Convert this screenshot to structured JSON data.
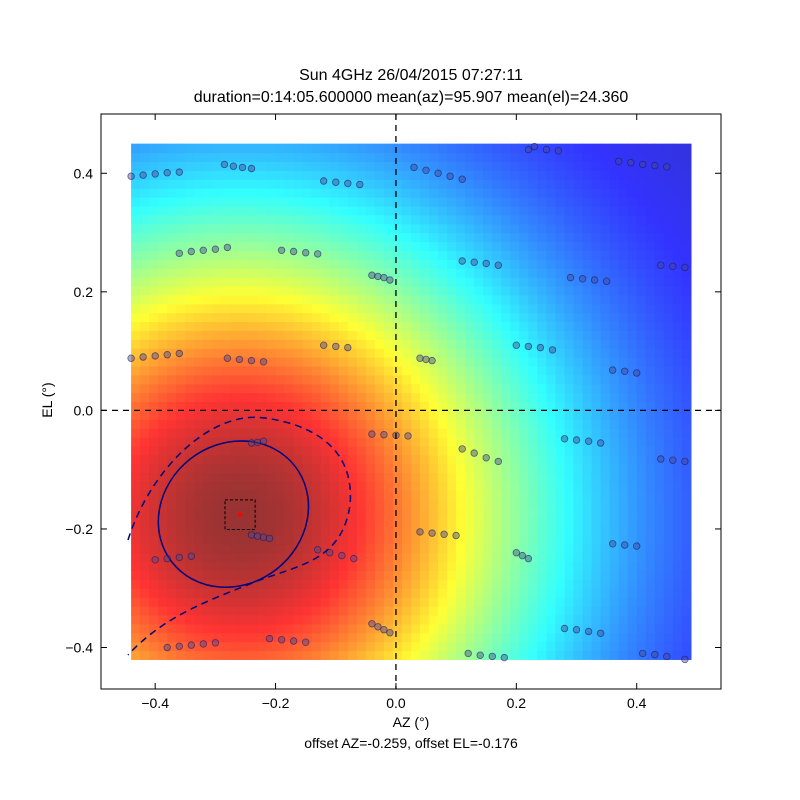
{
  "chart_data": {
    "type": "heatmap",
    "title": "Sun 4GHz 26/04/2015 07:27:11",
    "subtitle": "duration=0:14:05.600000 mean(az)=95.907 mean(el)=24.360",
    "xlabel": "AZ (°)",
    "ylabel": "EL (°)",
    "footer": "offset AZ=-0.259, offset EL=-0.176",
    "xlim": [
      -0.49,
      0.54
    ],
    "ylim": [
      -0.47,
      0.5
    ],
    "x_ticks": [
      -0.4,
      -0.2,
      0.0,
      0.2,
      0.4
    ],
    "x_tick_labels": [
      "−0.4",
      "−0.2",
      "0.0",
      "0.2",
      "0.4"
    ],
    "y_ticks": [
      -0.4,
      -0.2,
      0.0,
      0.2,
      0.4
    ],
    "y_tick_labels": [
      "−0.4",
      "−0.2",
      "0.0",
      "0.2",
      "0.4"
    ],
    "heatmap": {
      "colormap": "jet",
      "alpha": 0.8,
      "x_range": [
        -0.44,
        0.49
      ],
      "y_range": [
        -0.42,
        0.45
      ],
      "peak": {
        "x": -0.259,
        "y": -0.176
      }
    },
    "crosshair": {
      "x": 0.0,
      "y": 0.0
    },
    "offset_marker": {
      "x": -0.259,
      "y": -0.176,
      "box_half_width": 0.025,
      "color": "#ff0000"
    },
    "contours": [
      {
        "level": "solid",
        "color": "#000080"
      },
      {
        "level": "dashed",
        "color": "#000080"
      }
    ],
    "sample_points": {
      "color": "#1a1a80",
      "rows": [
        {
          "x": [
            -0.44,
            -0.42,
            -0.4,
            -0.38,
            -0.36
          ],
          "y": [
            0.395,
            0.397,
            0.399,
            0.401,
            0.402
          ]
        },
        {
          "x": [
            -0.285,
            -0.27,
            -0.255,
            -0.24
          ],
          "y": [
            0.415,
            0.412,
            0.41,
            0.408
          ]
        },
        {
          "x": [
            -0.12,
            -0.1,
            -0.08,
            -0.06
          ],
          "y": [
            0.387,
            0.385,
            0.383,
            0.381
          ]
        },
        {
          "x": [
            0.03,
            0.05,
            0.07,
            0.09,
            0.11
          ],
          "y": [
            0.41,
            0.405,
            0.4,
            0.395,
            0.39
          ]
        },
        {
          "x": [
            0.22,
            0.23,
            0.25,
            0.27
          ],
          "y": [
            0.44,
            0.445,
            0.44,
            0.438
          ]
        },
        {
          "x": [
            0.37,
            0.39,
            0.41,
            0.43,
            0.45
          ],
          "y": [
            0.42,
            0.418,
            0.415,
            0.413,
            0.411
          ]
        },
        {
          "x": [
            -0.36,
            -0.34,
            -0.32,
            -0.3,
            -0.28
          ],
          "y": [
            0.265,
            0.268,
            0.27,
            0.272,
            0.275
          ]
        },
        {
          "x": [
            -0.19,
            -0.17,
            -0.15,
            -0.13
          ],
          "y": [
            0.27,
            0.268,
            0.266,
            0.264
          ]
        },
        {
          "x": [
            -0.04,
            -0.03,
            -0.02,
            -0.01
          ],
          "y": [
            0.228,
            0.226,
            0.224,
            0.22
          ]
        },
        {
          "x": [
            0.11,
            0.13,
            0.15,
            0.17
          ],
          "y": [
            0.252,
            0.25,
            0.248,
            0.245
          ]
        },
        {
          "x": [
            0.29,
            0.31,
            0.33,
            0.35
          ],
          "y": [
            0.224,
            0.222,
            0.22,
            0.218
          ]
        },
        {
          "x": [
            0.44,
            0.46,
            0.48
          ],
          "y": [
            0.245,
            0.243,
            0.241
          ]
        },
        {
          "x": [
            -0.44,
            -0.42,
            -0.4,
            -0.38,
            -0.36
          ],
          "y": [
            0.088,
            0.09,
            0.092,
            0.094,
            0.096
          ]
        },
        {
          "x": [
            -0.28,
            -0.26,
            -0.24,
            -0.22
          ],
          "y": [
            0.088,
            0.086,
            0.084,
            0.082
          ]
        },
        {
          "x": [
            -0.12,
            -0.1,
            -0.08
          ],
          "y": [
            0.11,
            0.108,
            0.106
          ]
        },
        {
          "x": [
            0.04,
            0.05,
            0.06
          ],
          "y": [
            0.088,
            0.086,
            0.084
          ]
        },
        {
          "x": [
            0.2,
            0.22,
            0.24,
            0.26
          ],
          "y": [
            0.11,
            0.108,
            0.106,
            0.102
          ]
        },
        {
          "x": [
            0.36,
            0.38,
            0.4
          ],
          "y": [
            0.068,
            0.066,
            0.063
          ]
        },
        {
          "x": [
            -0.24,
            -0.23,
            -0.22
          ],
          "y": [
            -0.055,
            -0.054,
            -0.052
          ]
        },
        {
          "x": [
            -0.04,
            -0.02,
            0.0,
            0.02
          ],
          "y": [
            -0.04,
            -0.041,
            -0.042,
            -0.043
          ]
        },
        {
          "x": [
            0.11,
            0.13,
            0.15,
            0.17
          ],
          "y": [
            -0.065,
            -0.072,
            -0.08,
            -0.086
          ]
        },
        {
          "x": [
            0.28,
            0.3,
            0.32,
            0.34
          ],
          "y": [
            -0.048,
            -0.05,
            -0.052,
            -0.055
          ]
        },
        {
          "x": [
            0.44,
            0.46,
            0.48
          ],
          "y": [
            -0.082,
            -0.084,
            -0.086
          ]
        },
        {
          "x": [
            -0.4,
            -0.38,
            -0.36,
            -0.34
          ],
          "y": [
            -0.252,
            -0.25,
            -0.248,
            -0.246
          ]
        },
        {
          "x": [
            -0.24,
            -0.23,
            -0.22,
            -0.21
          ],
          "y": [
            -0.21,
            -0.212,
            -0.214,
            -0.216
          ]
        },
        {
          "x": [
            -0.13,
            -0.11,
            -0.09,
            -0.07
          ],
          "y": [
            -0.235,
            -0.24,
            -0.245,
            -0.25
          ]
        },
        {
          "x": [
            0.04,
            0.06,
            0.08,
            0.1
          ],
          "y": [
            -0.205,
            -0.207,
            -0.209,
            -0.211
          ]
        },
        {
          "x": [
            0.2,
            0.21,
            0.22
          ],
          "y": [
            -0.24,
            -0.245,
            -0.25
          ]
        },
        {
          "x": [
            0.36,
            0.38,
            0.4
          ],
          "y": [
            -0.225,
            -0.227,
            -0.229
          ]
        },
        {
          "x": [
            -0.38,
            -0.36,
            -0.34,
            -0.32,
            -0.3
          ],
          "y": [
            -0.4,
            -0.398,
            -0.396,
            -0.394,
            -0.392
          ]
        },
        {
          "x": [
            -0.21,
            -0.19,
            -0.17,
            -0.15
          ],
          "y": [
            -0.385,
            -0.387,
            -0.389,
            -0.391
          ]
        },
        {
          "x": [
            -0.04,
            -0.03,
            -0.02,
            -0.01
          ],
          "y": [
            -0.36,
            -0.365,
            -0.37,
            -0.375
          ]
        },
        {
          "x": [
            0.12,
            0.14,
            0.16,
            0.18
          ],
          "y": [
            -0.41,
            -0.413,
            -0.415,
            -0.417
          ]
        },
        {
          "x": [
            0.28,
            0.3,
            0.32,
            0.34
          ],
          "y": [
            -0.368,
            -0.37,
            -0.373,
            -0.376
          ]
        },
        {
          "x": [
            0.41,
            0.43,
            0.45,
            0.48
          ],
          "y": [
            -0.41,
            -0.412,
            -0.415,
            -0.42
          ]
        }
      ]
    }
  }
}
